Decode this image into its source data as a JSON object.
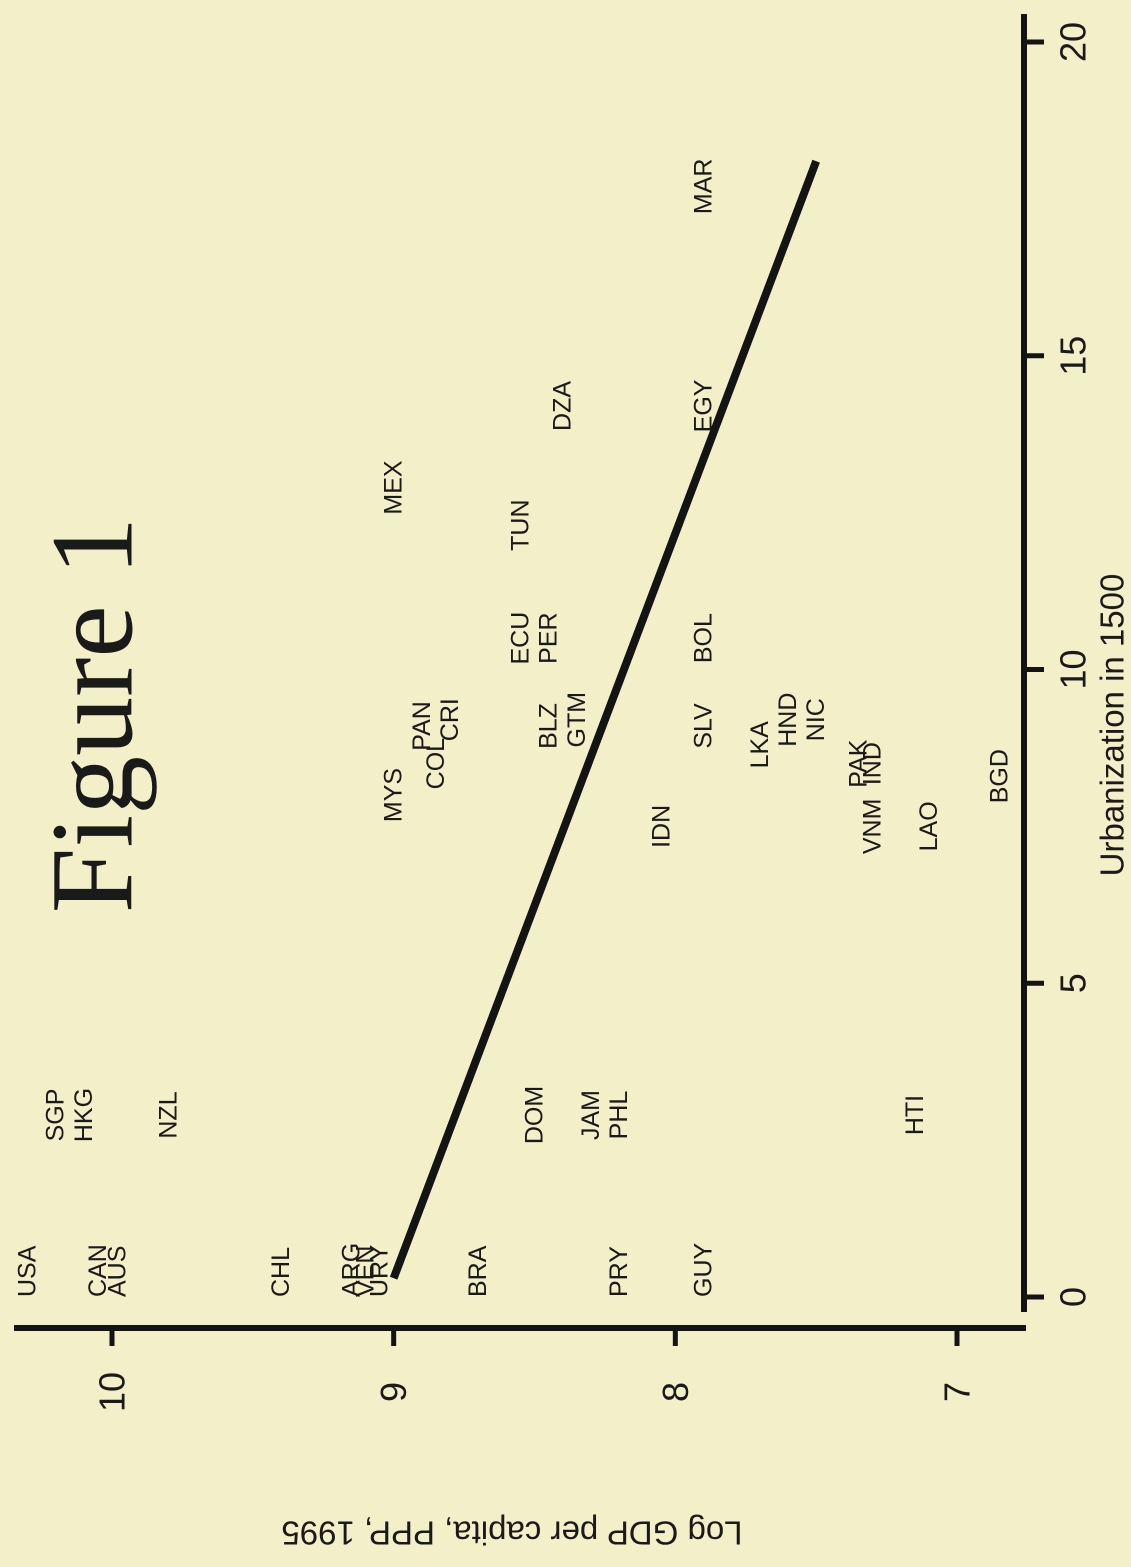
{
  "chart_data": {
    "type": "scatter",
    "title": "Figure 1",
    "xlabel": "Urbanization in 1500",
    "ylabel": "Log GDP per capita, PPP, 1995",
    "xlim": [
      0,
      20
    ],
    "ylim": [
      6.7,
      10.4
    ],
    "x_ticks": [
      0,
      5,
      10,
      15,
      20
    ],
    "y_ticks": [
      7,
      8,
      9,
      10
    ],
    "orientation": "rotated 90° counter-clockwise (x axis on the right edge, y axis along the bottom edge)",
    "points": [
      {
        "label": "USA",
        "x": 0,
        "y": 10.3
      },
      {
        "label": "CAN",
        "x": 0,
        "y": 10.05
      },
      {
        "label": "AUS",
        "x": 0,
        "y": 9.98
      },
      {
        "label": "CHL",
        "x": 0,
        "y": 9.4
      },
      {
        "label": "ARG",
        "x": 0,
        "y": 9.15
      },
      {
        "label": "VEN",
        "x": 0,
        "y": 9.1
      },
      {
        "label": "URY",
        "x": 0,
        "y": 9.05
      },
      {
        "label": "BRA",
        "x": 0,
        "y": 8.7
      },
      {
        "label": "PRY",
        "x": 0,
        "y": 8.2
      },
      {
        "label": "GUY",
        "x": 0,
        "y": 7.9
      },
      {
        "label": "SGP",
        "x": 2.9,
        "y": 10.2
      },
      {
        "label": "HKG",
        "x": 2.9,
        "y": 10.1
      },
      {
        "label": "NZL",
        "x": 2.9,
        "y": 9.8
      },
      {
        "label": "DOM",
        "x": 2.9,
        "y": 8.5
      },
      {
        "label": "JAM",
        "x": 2.9,
        "y": 8.3
      },
      {
        "label": "PHL",
        "x": 2.9,
        "y": 8.2
      },
      {
        "label": "HTI",
        "x": 2.9,
        "y": 7.15
      },
      {
        "label": "MYS",
        "x": 8.0,
        "y": 9.0
      },
      {
        "label": "COL",
        "x": 8.5,
        "y": 8.85
      },
      {
        "label": "PAN",
        "x": 9.1,
        "y": 8.9
      },
      {
        "label": "CRI",
        "x": 9.2,
        "y": 8.8
      },
      {
        "label": "MEX",
        "x": 12.9,
        "y": 9.0
      },
      {
        "label": "TUN",
        "x": 12.3,
        "y": 8.55
      },
      {
        "label": "DZA",
        "x": 14.2,
        "y": 8.4
      },
      {
        "label": "ECU",
        "x": 10.5,
        "y": 8.55
      },
      {
        "label": "PER",
        "x": 10.5,
        "y": 8.45
      },
      {
        "label": "BLZ",
        "x": 9.1,
        "y": 8.45
      },
      {
        "label": "GTM",
        "x": 9.2,
        "y": 8.35
      },
      {
        "label": "IDN",
        "x": 7.5,
        "y": 8.05
      },
      {
        "label": "SLV",
        "x": 9.1,
        "y": 7.9
      },
      {
        "label": "BOL",
        "x": 10.5,
        "y": 7.9
      },
      {
        "label": "EGY",
        "x": 14.2,
        "y": 7.9
      },
      {
        "label": "LKA",
        "x": 8.8,
        "y": 7.7
      },
      {
        "label": "HND",
        "x": 9.2,
        "y": 7.6
      },
      {
        "label": "NIC",
        "x": 9.2,
        "y": 7.5
      },
      {
        "label": "PAK",
        "x": 8.5,
        "y": 7.35
      },
      {
        "label": "IND",
        "x": 8.5,
        "y": 7.3
      },
      {
        "label": "VNM",
        "x": 7.5,
        "y": 7.3
      },
      {
        "label": "LAO",
        "x": 7.5,
        "y": 7.1
      },
      {
        "label": "BGD",
        "x": 8.3,
        "y": 6.85
      },
      {
        "label": "MAR",
        "x": 17.7,
        "y": 7.9
      }
    ],
    "fit_line": {
      "x": [
        0.3,
        18.1
      ],
      "y": [
        9.0,
        7.5
      ]
    }
  }
}
